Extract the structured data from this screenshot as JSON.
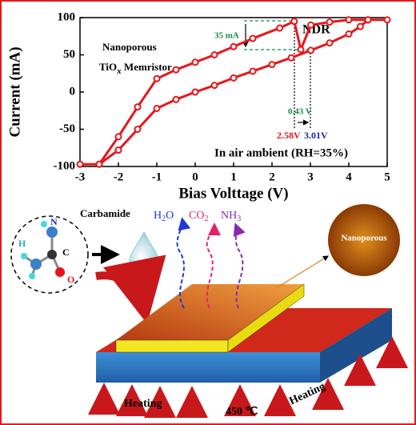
{
  "chart_data": {
    "type": "line",
    "x_label": "Bias Volttage (V)",
    "y_label": "Current (mA)",
    "xlim": [
      -3,
      5
    ],
    "xticks": [
      -3,
      -2,
      -1,
      0,
      1,
      2,
      3,
      4,
      5
    ],
    "ylim": [
      -100,
      100
    ],
    "yticks": [
      -100,
      -50,
      0,
      50,
      100
    ],
    "series": [
      {
        "color": "#e8161b",
        "x": [
          0,
          0.5,
          1,
          1.5,
          2,
          2.5,
          3.01,
          3.5,
          4,
          4.3,
          4.5,
          5,
          4.5,
          4,
          3.5,
          3.01,
          2.75,
          2.58,
          2.2,
          1.5,
          1,
          0.5,
          0,
          -0.5,
          -1,
          -1.5,
          -2,
          -2.5,
          -3,
          -2.5,
          -2,
          -1.5,
          -1,
          -0.5,
          0
        ],
        "values": [
          0,
          9,
          19,
          28,
          37,
          46,
          56,
          66,
          78,
          88,
          97,
          97,
          97,
          97,
          94,
          90,
          57,
          95,
          86,
          72,
          61,
          50,
          40,
          30,
          18,
          -20,
          -60,
          -97,
          -97,
          -97,
          -78,
          -50,
          -22,
          -10,
          0
        ]
      }
    ],
    "annotations": {
      "nano": "Nanoporous",
      "tio": "TiO",
      "tio_sub": "x",
      "tio_tail": " Memristor",
      "delta": "35 mA",
      "ndr": "NDR",
      "gap": "0.43 V",
      "v1": "2.58V",
      "v2": "3.01V",
      "ambient": "In air ambient (RH=35%)"
    }
  },
  "diagram": {
    "carbamide": "Carbamide",
    "h2o": [
      "H",
      "2",
      "O"
    ],
    "co2": [
      "CO",
      "2"
    ],
    "nh3": [
      "NH",
      "3"
    ],
    "atoms": {
      "n": "N",
      "h": "H",
      "c": "C",
      "o": "O"
    },
    "nanoporous": "Nanoporous",
    "heating_left": "Heating",
    "heating_right": "Heating",
    "temperature": "450 ℃"
  }
}
